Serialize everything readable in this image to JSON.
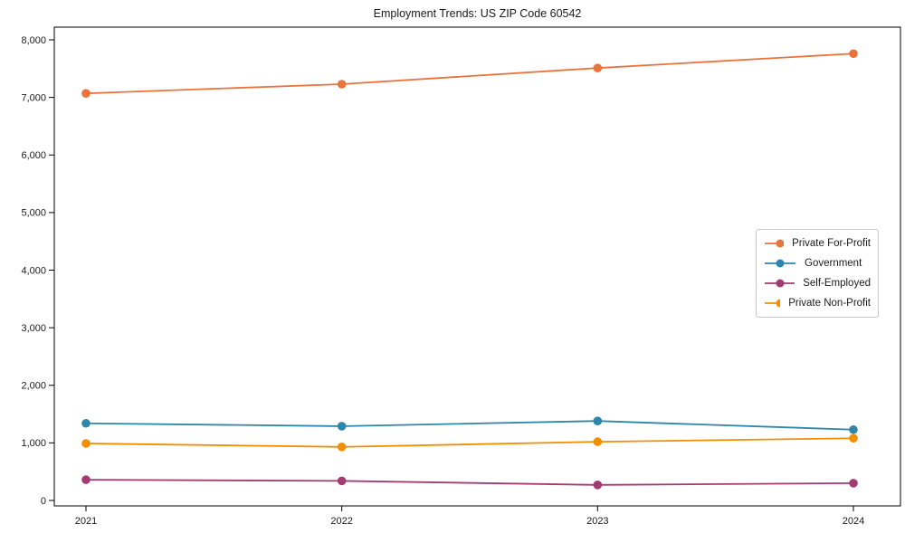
{
  "chart_data": {
    "type": "line",
    "title": "Employment Trends: US ZIP Code 60542",
    "categories": [
      "2021",
      "2022",
      "2023",
      "2024"
    ],
    "series": [
      {
        "name": "Private For-Profit",
        "color": "#E8743B",
        "values": [
          7070,
          7230,
          7510,
          7760
        ]
      },
      {
        "name": "Government",
        "color": "#2E86AB",
        "values": [
          1340,
          1290,
          1380,
          1230
        ]
      },
      {
        "name": "Self-Employed",
        "color": "#A23B72",
        "values": [
          360,
          340,
          270,
          300
        ]
      },
      {
        "name": "Private Non-Profit",
        "color": "#F18F01",
        "values": [
          990,
          930,
          1020,
          1080
        ]
      }
    ],
    "xlabel": "",
    "ylabel": "",
    "ylim": [
      0,
      8000
    ],
    "ytick_step": 1000,
    "ytick_labels": [
      "0",
      "1,000",
      "2,000",
      "3,000",
      "4,000",
      "5,000",
      "6,000",
      "7,000",
      "8,000"
    ],
    "grid": false,
    "legend_position": "center-right",
    "frame": "full-box",
    "axis_color": "#000000",
    "text_color": "#1a1a1a"
  }
}
